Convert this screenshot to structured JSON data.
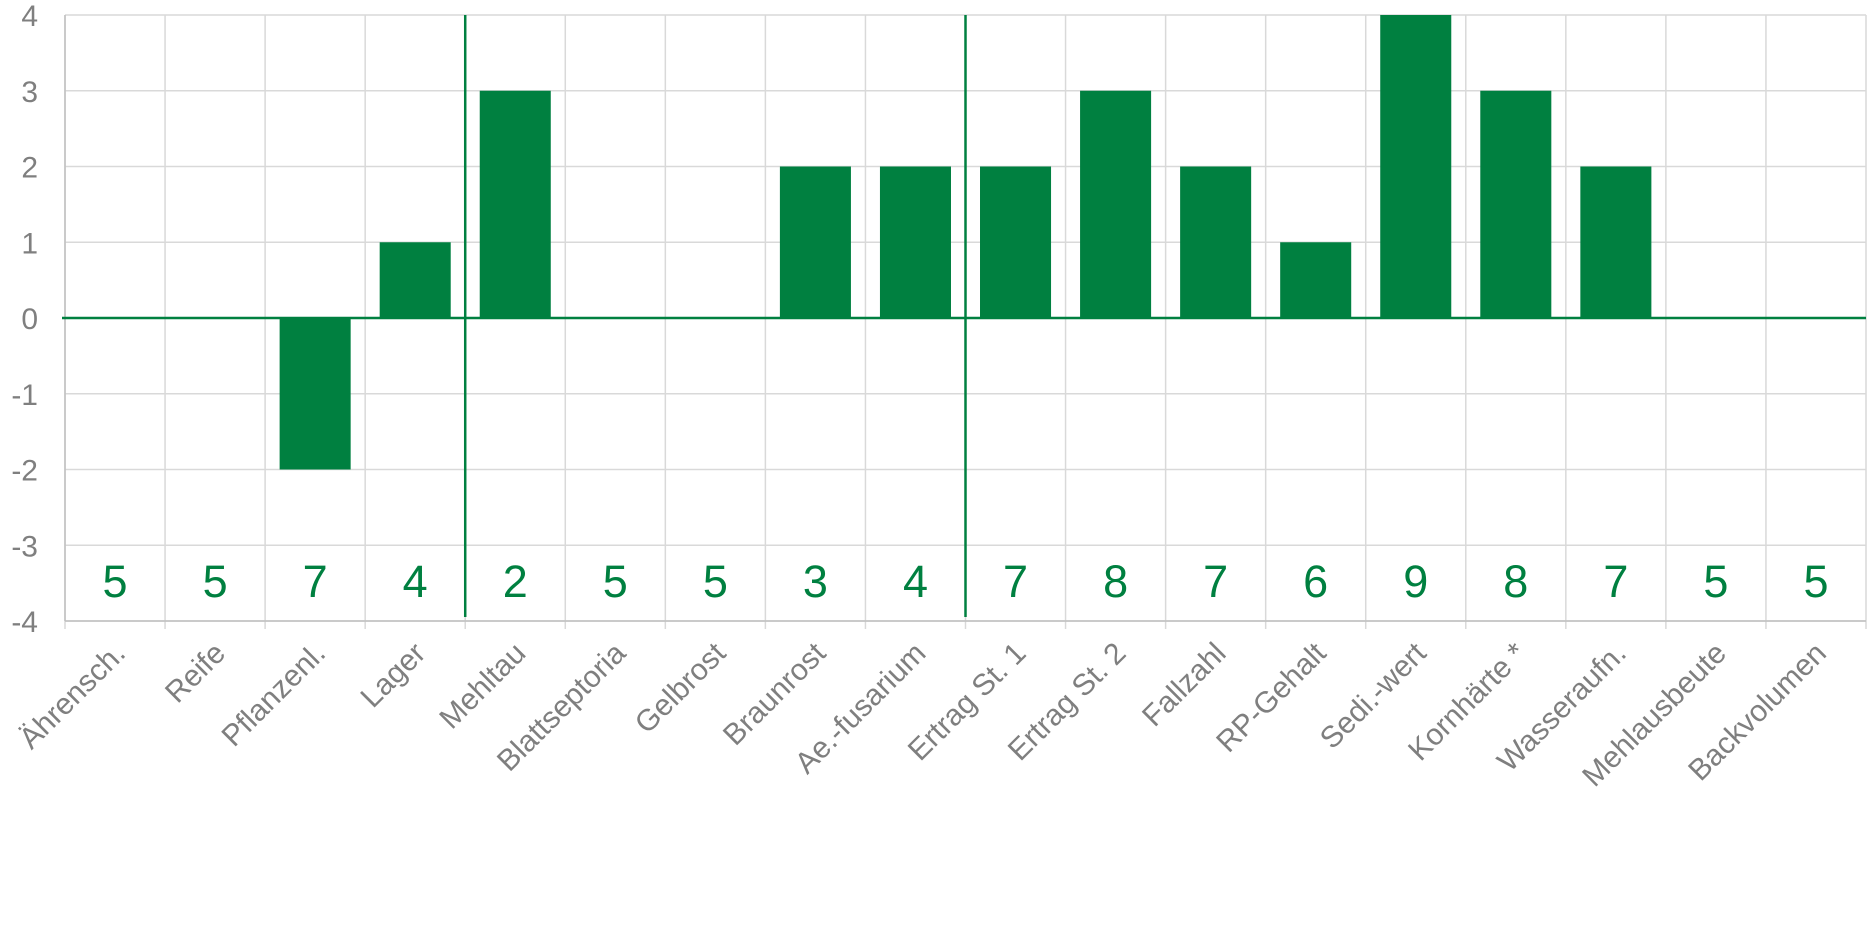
{
  "chart_data": {
    "type": "bar",
    "categories": [
      "Ährensch.",
      "Reife",
      "Pflanzenl.",
      "Lager",
      "Mehltau",
      "Blattseptoria",
      "Gelbrost",
      "Braunrost",
      "Ae.-fusarium",
      "Ertrag St. 1",
      "Ertrag St. 2",
      "Fallzahl",
      "RP-Gehalt",
      "Sedi.-wert",
      "Kornhärte *",
      "Wasseraufn.",
      "Mehlausbeute",
      "Backvolumen"
    ],
    "values": [
      0,
      0,
      -2,
      1,
      3,
      0,
      0,
      2,
      2,
      2,
      3,
      2,
      1,
      4,
      3,
      2,
      0,
      0
    ],
    "scores": [
      "5",
      "5",
      "7",
      "4",
      "2",
      "5",
      "5",
      "3",
      "4",
      "7",
      "8",
      "7",
      "6",
      "9",
      "8",
      "7",
      "5",
      "5"
    ],
    "yticks": [
      "4",
      "3",
      "2",
      "1",
      "0",
      "-1",
      "-2",
      "-3",
      "-4"
    ],
    "ylim": [
      -4,
      4
    ],
    "group_dividers_after": [
      3,
      8
    ],
    "grid": true,
    "bar_color": "#008040",
    "grid_color": "#d9d9d9",
    "axis_text_color": "#7f7f7f",
    "title": "",
    "xlabel": "",
    "ylabel": ""
  }
}
